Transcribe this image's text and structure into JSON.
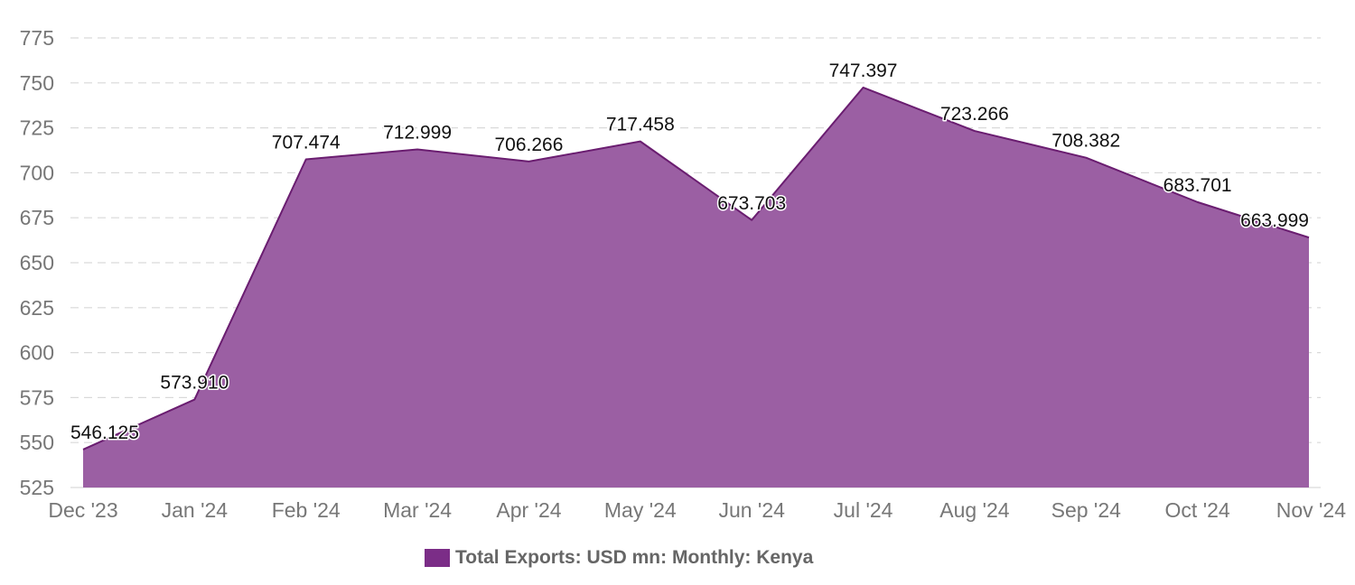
{
  "chart_data": {
    "type": "area",
    "title": "",
    "xlabel": "",
    "ylabel": "",
    "ylim": [
      525,
      775
    ],
    "yticks": [
      525,
      550,
      575,
      600,
      625,
      650,
      675,
      700,
      725,
      750,
      775
    ],
    "grid": true,
    "categories": [
      "Dec '23",
      "Jan '24",
      "Feb '24",
      "Mar '24",
      "Apr '24",
      "May '24",
      "Jun '24",
      "Jul '24",
      "Aug '24",
      "Sep '24",
      "Oct '24",
      "Nov '24"
    ],
    "series": [
      {
        "name": "Total Exports: USD mn: Monthly: Kenya",
        "values": [
          546.125,
          573.91,
          707.474,
          712.999,
          706.266,
          717.458,
          673.703,
          747.397,
          723.266,
          708.382,
          683.701,
          663.999
        ],
        "value_labels": [
          "546.125",
          "573.910",
          "707.474",
          "712.999",
          "706.266",
          "717.458",
          "673.703",
          "747.397",
          "723.266",
          "708.382",
          "683.701",
          "663.999"
        ]
      }
    ],
    "legend_position": "bottom",
    "colors": {
      "fill": "#9b5fa3",
      "line": "#6a1d70",
      "legend_swatch": "#7b2d87"
    }
  }
}
